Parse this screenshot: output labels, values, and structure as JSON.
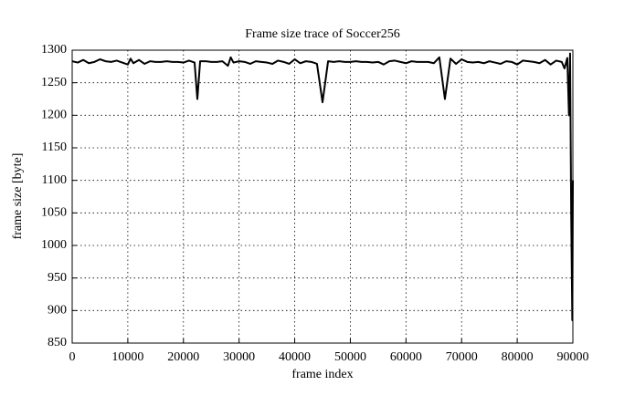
{
  "chart_data": {
    "type": "line",
    "title": "Frame size trace of Soccer256",
    "x_label": "frame index",
    "y_label": "frame size [byte]",
    "xlim": [
      0,
      90000
    ],
    "xticks": [
      0,
      10000,
      20000,
      30000,
      40000,
      50000,
      60000,
      70000,
      80000,
      90000
    ],
    "ylim": [
      850,
      1300
    ],
    "yticks": [
      850,
      900,
      950,
      1000,
      1050,
      1100,
      1150,
      1200,
      1250,
      1300
    ],
    "grid": true,
    "series": [
      {
        "color": "#000000",
        "x": [
          0,
          1000,
          2000,
          3000,
          4000,
          5000,
          6000,
          7000,
          8000,
          9000,
          10000,
          10500,
          11000,
          12000,
          13000,
          14000,
          15000,
          16000,
          17000,
          18000,
          19000,
          20000,
          21000,
          22000,
          22500,
          23000,
          24000,
          25000,
          26000,
          27000,
          28000,
          28500,
          29000,
          30000,
          31000,
          32000,
          33000,
          34000,
          35000,
          36000,
          37000,
          38000,
          39000,
          40000,
          41000,
          42000,
          43000,
          44000,
          45000,
          46000,
          47000,
          48000,
          49000,
          50000,
          51000,
          52000,
          53000,
          54000,
          55000,
          56000,
          57000,
          58000,
          59000,
          60000,
          61000,
          62000,
          63000,
          64000,
          65000,
          66000,
          67000,
          68000,
          69000,
          70000,
          71000,
          72000,
          73000,
          74000,
          75000,
          76000,
          77000,
          78000,
          79000,
          80000,
          81000,
          82000,
          83000,
          84000,
          85000,
          86000,
          87000,
          88000,
          88500,
          89000,
          89300,
          89500,
          89700,
          89900,
          90000
        ],
        "values": [
          1283,
          1281,
          1285,
          1280,
          1282,
          1286,
          1283,
          1282,
          1284,
          1281,
          1278,
          1287,
          1280,
          1285,
          1279,
          1283,
          1282,
          1282,
          1283,
          1282,
          1282,
          1281,
          1284,
          1281,
          1225,
          1283,
          1283,
          1282,
          1282,
          1283,
          1276,
          1289,
          1281,
          1283,
          1282,
          1279,
          1283,
          1282,
          1281,
          1279,
          1284,
          1282,
          1279,
          1286,
          1280,
          1283,
          1282,
          1279,
          1220,
          1283,
          1282,
          1283,
          1282,
          1282,
          1283,
          1282,
          1282,
          1281,
          1282,
          1278,
          1283,
          1284,
          1282,
          1280,
          1283,
          1282,
          1282,
          1282,
          1280,
          1289,
          1225,
          1287,
          1279,
          1286,
          1282,
          1281,
          1282,
          1280,
          1283,
          1281,
          1279,
          1283,
          1282,
          1278,
          1284,
          1283,
          1282,
          1280,
          1285,
          1278,
          1284,
          1282,
          1272,
          1288,
          1200,
          1295,
          1050,
          885,
          1100
        ]
      }
    ]
  }
}
